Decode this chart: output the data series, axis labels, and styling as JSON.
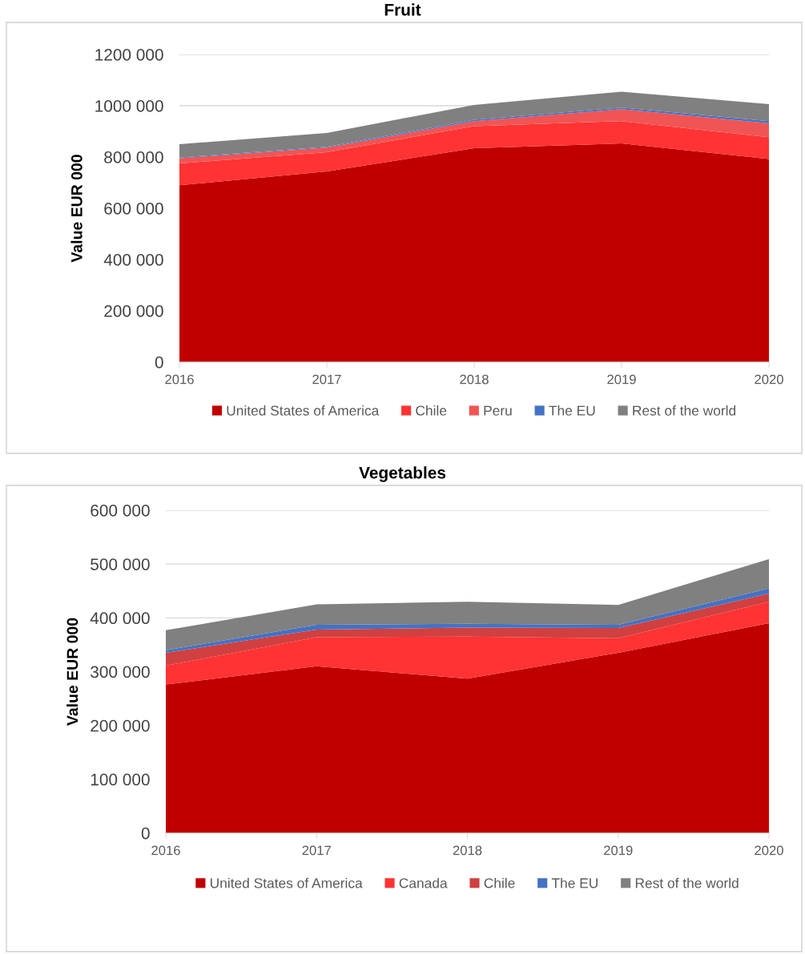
{
  "chart_data": [
    {
      "type": "area",
      "stacked": true,
      "title": "Fruit",
      "ylabel": "Value EUR 000",
      "x": [
        2016,
        2017,
        2018,
        2019,
        2020
      ],
      "xlim": [
        2016,
        2020
      ],
      "xticks": [
        2016,
        2017,
        2018,
        2019,
        2020
      ],
      "ylim": [
        0,
        1200000
      ],
      "yticks": [
        0,
        {
          "value": 200000,
          "label": "200 000"
        },
        {
          "value": 400000,
          "label": "400 000"
        },
        {
          "value": 600000,
          "label": "600 000"
        },
        {
          "value": 800000,
          "label": "800 000"
        },
        {
          "value": 1000000,
          "label": "1000 000"
        },
        {
          "value": 1200000,
          "label": "1200 000"
        }
      ],
      "grid": "y",
      "legend": "bottom",
      "series": [
        {
          "name": "United States of America",
          "color": "#c00000",
          "values": [
            690000,
            744000,
            834000,
            853000,
            792000
          ]
        },
        {
          "name": "Chile",
          "color": "#ff3333",
          "values": [
            85000,
            75000,
            86000,
            87000,
            85000
          ]
        },
        {
          "name": "Peru",
          "color": "#f05555",
          "values": [
            20000,
            18000,
            20000,
            47000,
            54000
          ]
        },
        {
          "name": "The EU",
          "color": "#4472c4",
          "values": [
            3000,
            3000,
            5000,
            6000,
            9000
          ]
        },
        {
          "name": "Rest of the world",
          "color": "#808080",
          "values": [
            52000,
            54000,
            58000,
            62000,
            66000
          ]
        }
      ]
    },
    {
      "type": "area",
      "stacked": true,
      "title": "Vegetables",
      "ylabel": "Value EUR 000",
      "x": [
        2016,
        2017,
        2018,
        2019,
        2020
      ],
      "xlim": [
        2016,
        2020
      ],
      "xticks": [
        2016,
        2017,
        2018,
        2019,
        2020
      ],
      "ylim": [
        0,
        600000
      ],
      "yticks": [
        0,
        {
          "value": 100000,
          "label": "100 000"
        },
        {
          "value": 200000,
          "label": "200 000"
        },
        {
          "value": 300000,
          "label": "300 000"
        },
        {
          "value": 400000,
          "label": "400 000"
        },
        {
          "value": 500000,
          "label": "500 000"
        },
        {
          "value": 600000,
          "label": "600 000"
        }
      ],
      "grid": "y",
      "legend": "bottom",
      "series": [
        {
          "name": "United States of America",
          "color": "#c00000",
          "values": [
            276000,
            310000,
            287000,
            335000,
            390000
          ]
        },
        {
          "name": "Canada",
          "color": "#ff3333",
          "values": [
            35000,
            54000,
            78000,
            27000,
            40000
          ]
        },
        {
          "name": "Chile",
          "color": "#d04040",
          "values": [
            24000,
            14000,
            17000,
            19000,
            15000
          ]
        },
        {
          "name": "The EU",
          "color": "#4472c4",
          "values": [
            5000,
            9000,
            7000,
            6000,
            10000
          ]
        },
        {
          "name": "Rest of the world",
          "color": "#808080",
          "values": [
            37000,
            38000,
            41000,
            37000,
            54000
          ]
        }
      ]
    }
  ]
}
